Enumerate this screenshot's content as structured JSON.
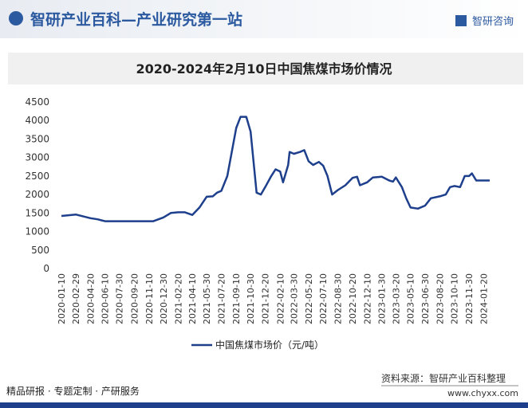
{
  "header": {
    "title": "智研产业百科—产业研究第一站",
    "brand": "智研咨询"
  },
  "chart_data": {
    "type": "line",
    "title": "2020-2024年2月10日中国焦煤市场价情况",
    "x": [
      "2020-01-10",
      "2020-02-29",
      "2020-04-20",
      "2020-05-15",
      "2020-06-10",
      "2020-07-30",
      "2020-09-20",
      "2020-11-10",
      "2020-11-25",
      "2020-12-30",
      "2021-01-25",
      "2021-02-20",
      "2021-03-15",
      "2021-04-10",
      "2021-05-05",
      "2021-05-30",
      "2021-06-20",
      "2021-07-05",
      "2021-07-20",
      "2021-08-10",
      "2021-09-10",
      "2021-09-25",
      "2021-10-15",
      "2021-10-30",
      "2021-11-20",
      "2021-12-05",
      "2021-12-20",
      "2022-01-10",
      "2022-01-25",
      "2022-02-10",
      "2022-02-20",
      "2022-03-10",
      "2022-03-15",
      "2022-03-30",
      "2022-04-20",
      "2022-05-05",
      "2022-05-20",
      "2022-06-05",
      "2022-06-25",
      "2022-07-10",
      "2022-07-25",
      "2022-08-10",
      "2022-08-30",
      "2022-09-25",
      "2022-10-20",
      "2022-11-05",
      "2022-11-15",
      "2022-12-10",
      "2022-12-30",
      "2023-01-30",
      "2023-02-25",
      "2023-03-10",
      "2023-03-20",
      "2023-04-10",
      "2023-04-25",
      "2023-05-10",
      "2023-06-05",
      "2023-06-30",
      "2023-07-20",
      "2023-08-20",
      "2023-09-10",
      "2023-09-25",
      "2023-10-10",
      "2023-10-30",
      "2023-11-15",
      "2023-11-30",
      "2023-12-10",
      "2023-12-25",
      "2024-01-20",
      "2024-02-10"
    ],
    "series": [
      {
        "name": "中国焦煤市场价（元/吨）",
        "color": "#1e3f8c",
        "values": [
          1420,
          1460,
          1360,
          1330,
          1280,
          1280,
          1280,
          1280,
          1280,
          1380,
          1500,
          1520,
          1520,
          1450,
          1650,
          1940,
          1950,
          2050,
          2100,
          2500,
          3800,
          4100,
          4100,
          3700,
          2050,
          2000,
          2200,
          2500,
          2680,
          2620,
          2330,
          2800,
          3150,
          3100,
          3150,
          3200,
          2900,
          2800,
          2880,
          2780,
          2500,
          2000,
          2120,
          2250,
          2450,
          2480,
          2250,
          2330,
          2460,
          2480,
          2380,
          2350,
          2460,
          2200,
          1900,
          1650,
          1620,
          1700,
          1900,
          1950,
          2000,
          2200,
          2230,
          2200,
          2500,
          2500,
          2570,
          2380,
          2380,
          2380
        ]
      }
    ],
    "xlim": [
      "2020-01-10",
      "2024-02-10"
    ],
    "xticks": [
      "2020-01-10",
      "2020-02-29",
      "2020-04-20",
      "2020-06-10",
      "2020-07-30",
      "2020-09-20",
      "2020-11-10",
      "2020-12-30",
      "2021-02-20",
      "2021-04-10",
      "2021-05-30",
      "2021-07-20",
      "2021-09-10",
      "2021-10-30",
      "2021-12-20",
      "2022-02-10",
      "2022-03-30",
      "2022-05-20",
      "2022-07-10",
      "2022-08-30",
      "2022-10-20",
      "2022-12-10",
      "2023-01-30",
      "2023-03-20",
      "2023-05-10",
      "2023-06-30",
      "2023-08-20",
      "2023-10-10",
      "2023-11-30",
      "2024-01-20"
    ],
    "ylim": [
      0,
      4500
    ],
    "yticks": [
      0,
      500,
      1000,
      1500,
      2000,
      2500,
      3000,
      3500,
      4000,
      4500
    ],
    "grid": false
  },
  "footer": {
    "services": "精品研报 · 专题定制 · 产研服务",
    "source": "资料来源：智研产业百科整理",
    "website": "www.chyxx.com"
  }
}
